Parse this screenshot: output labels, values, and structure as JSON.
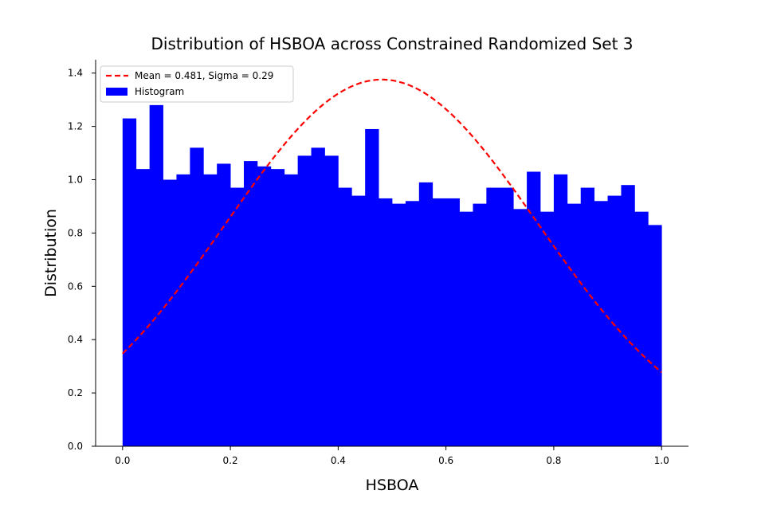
{
  "chart_data": {
    "type": "bar",
    "title": "Distribution of HSBOA across Constrained Randomized Set 3",
    "xlabel": "HSBOA",
    "ylabel": "Distribution",
    "xlim": [
      -0.05,
      1.05
    ],
    "ylim": [
      0.0,
      1.45
    ],
    "xticks": [
      0.0,
      0.2,
      0.4,
      0.6,
      0.8,
      1.0
    ],
    "xtick_labels": [
      "0.0",
      "0.2",
      "0.4",
      "0.6",
      "0.8",
      "1.0"
    ],
    "yticks": [
      0.0,
      0.2,
      0.4,
      0.6,
      0.8,
      1.0,
      1.2,
      1.4
    ],
    "ytick_labels": [
      "0.0",
      "0.2",
      "0.4",
      "0.6",
      "0.8",
      "1.0",
      "1.2",
      "1.4"
    ],
    "grid": false,
    "legend_position": "top-left",
    "histogram": {
      "name": "Histogram",
      "color": "#0000ff",
      "bin_edges": [
        0.0,
        0.025,
        0.05,
        0.075,
        0.1,
        0.125,
        0.15,
        0.175,
        0.2,
        0.225,
        0.25,
        0.275,
        0.3,
        0.325,
        0.35,
        0.375,
        0.4,
        0.425,
        0.45,
        0.475,
        0.5,
        0.525,
        0.55,
        0.575,
        0.6,
        0.625,
        0.65,
        0.675,
        0.7,
        0.725,
        0.75,
        0.775,
        0.8,
        0.825,
        0.85,
        0.875,
        0.9,
        0.925,
        0.95,
        0.975,
        1.0
      ],
      "values": [
        1.23,
        1.04,
        1.28,
        1.0,
        1.02,
        1.12,
        1.02,
        1.06,
        0.97,
        1.07,
        1.05,
        1.04,
        1.02,
        1.09,
        1.12,
        1.09,
        0.97,
        0.94,
        1.19,
        0.93,
        0.91,
        0.92,
        0.99,
        0.93,
        0.93,
        0.88,
        0.91,
        0.97,
        0.97,
        0.89,
        1.03,
        0.88,
        1.02,
        0.91,
        0.97,
        0.92,
        0.94,
        0.98,
        0.88,
        0.83
      ]
    },
    "curve": {
      "name": "Mean = 0.481, Sigma = 0.29",
      "color": "#ff0000",
      "style": "dashed",
      "mean": 0.481,
      "sigma": 0.29
    }
  }
}
